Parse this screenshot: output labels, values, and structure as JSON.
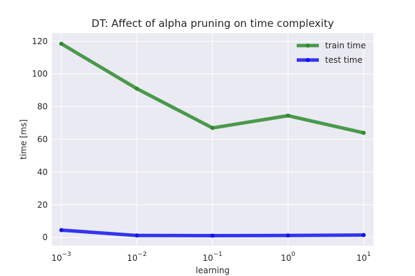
{
  "chart_data": {
    "type": "line",
    "title": "DT: Affect of alpha pruning on time complexity",
    "xlabel": "learning",
    "ylabel": "time [ms]",
    "x_scale": "log",
    "x": [
      0.001,
      0.01,
      0.1,
      1,
      10
    ],
    "x_tick_labels": [
      {
        "base": "10",
        "exp": "−3"
      },
      {
        "base": "10",
        "exp": "−2"
      },
      {
        "base": "10",
        "exp": "−1"
      },
      {
        "base": "10",
        "exp": "0"
      },
      {
        "base": "10",
        "exp": "1"
      }
    ],
    "xlim": [
      0.00075,
      13.5
    ],
    "ylim": [
      -5,
      125
    ],
    "yticks": [
      0,
      20,
      40,
      60,
      80,
      100,
      120
    ],
    "grid": true,
    "legend_position": "top-right",
    "series": [
      {
        "name": "train time",
        "color": "#2e8b2e",
        "values": [
          118.5,
          91,
          67,
          74.5,
          64
        ]
      },
      {
        "name": "test time",
        "color": "#1414ee",
        "values": [
          4.5,
          1.2,
          1.1,
          1.2,
          1.5
        ]
      }
    ]
  }
}
